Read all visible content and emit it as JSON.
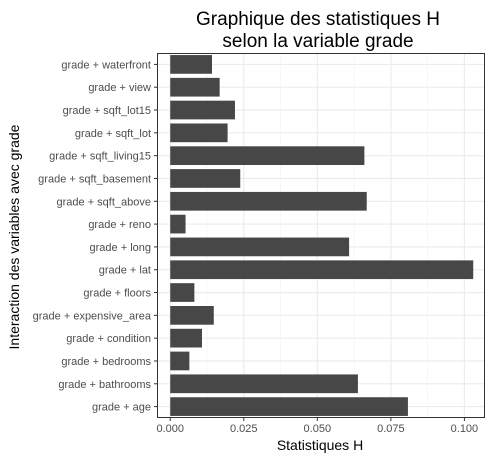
{
  "chart_data": {
    "type": "bar",
    "orientation": "horizontal",
    "title": [
      "Graphique des statistiques H",
      "selon la variable grade"
    ],
    "xlabel": "Statistiques H",
    "ylabel": "Interaction des variables avec grade",
    "xlim": [
      -0.0045,
      0.107
    ],
    "xticks": [
      0.0,
      0.025,
      0.05,
      0.075,
      0.1
    ],
    "xtick_labels": [
      "0.000",
      "0.025",
      "0.050",
      "0.075",
      "0.100"
    ],
    "grid": true,
    "bar_color": "#474747",
    "categories": [
      "grade + waterfront",
      "grade + view",
      "grade + sqft_lot15",
      "grade + sqft_lot",
      "grade + sqft_living15",
      "grade + sqft_basement",
      "grade + sqft_above",
      "grade + reno",
      "grade + long",
      "grade + lat",
      "grade + floors",
      "grade + expensive_area",
      "grade + condition",
      "grade + bedrooms",
      "grade + bathrooms",
      "grade + age"
    ],
    "values": [
      0.0142,
      0.0168,
      0.022,
      0.0195,
      0.066,
      0.0238,
      0.0668,
      0.0052,
      0.0608,
      0.103,
      0.0082,
      0.0148,
      0.0108,
      0.0065,
      0.0638,
      0.0808
    ]
  }
}
